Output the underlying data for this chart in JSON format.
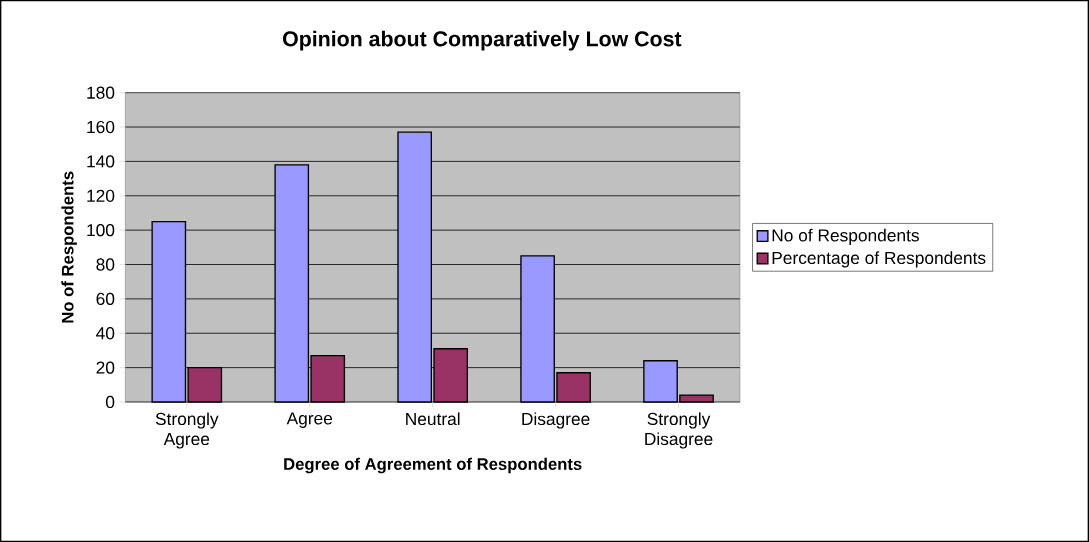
{
  "chart_data": {
    "type": "bar",
    "title": "Opinion about Comparatively Low Cost",
    "xlabel": "Degree of Agreement of Respondents",
    "ylabel": "No of Respondents",
    "categories": [
      "Strongly Agree",
      "Agree",
      "Neutral",
      "Disagree",
      "Strongly Disagree"
    ],
    "series": [
      {
        "name": "No of Respondents",
        "color": "#9999ff",
        "values": [
          105,
          138,
          157,
          85,
          24
        ]
      },
      {
        "name": "Percentage of  Respondents",
        "color": "#993366",
        "values": [
          20,
          27,
          31,
          17,
          4
        ]
      }
    ],
    "ylim": [
      0,
      180
    ],
    "yticks": [
      0,
      20,
      40,
      60,
      80,
      100,
      120,
      140,
      160,
      180
    ],
    "grid": "y",
    "legend": "right"
  }
}
